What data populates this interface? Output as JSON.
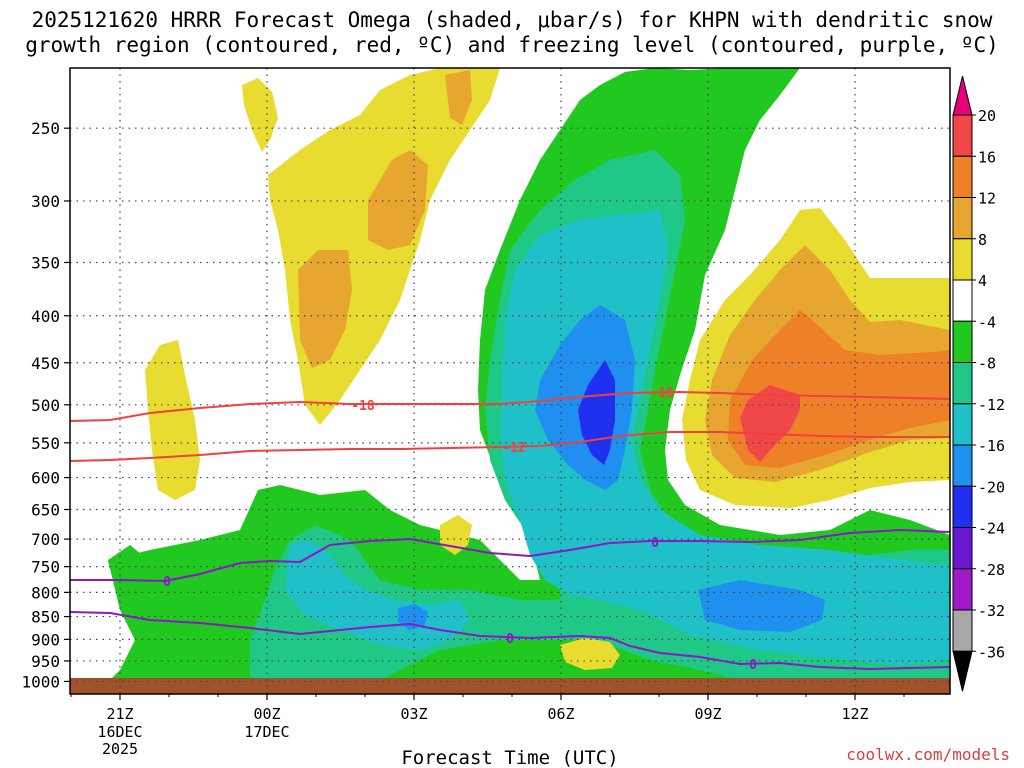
{
  "title": {
    "line1": "2025121620 HRRR Forecast Omega (shaded, μbar/s) for KHPN with dendritic snow",
    "line2": "growth region (contoured, red, ºC) and freezing level (contoured, purple, ºC)"
  },
  "xaxis_label": "Forecast Time (UTC)",
  "credit": "coolwx.com/models",
  "colors": {
    "dendritic": "#f04040",
    "freezing": "#8a18c8",
    "ground": "#a0522d",
    "grid": "#444444"
  },
  "chart_data": {
    "type": "heatmap",
    "xlabel": "Forecast Time (UTC)",
    "ylabel": "",
    "y_ticks": [
      "250",
      "300",
      "350",
      "400",
      "450",
      "500",
      "550",
      "600",
      "650",
      "700",
      "750",
      "800",
      "850",
      "900",
      "950",
      "1000"
    ],
    "x_ticks": [
      {
        "label": "21Z",
        "sub": [
          "16DEC",
          "2025"
        ],
        "hour": 1
      },
      {
        "label": "00Z",
        "sub": [
          "17DEC"
        ],
        "hour": 4
      },
      {
        "label": "03Z",
        "sub": [],
        "hour": 7
      },
      {
        "label": "06Z",
        "sub": [],
        "hour": 10
      },
      {
        "label": "09Z",
        "sub": [],
        "hour": 13
      },
      {
        "label": "12Z",
        "sub": [],
        "hour": 16
      }
    ],
    "colorbar": {
      "labels": [
        "20",
        "16",
        "12",
        "8",
        "4",
        "-4",
        "-8",
        "-12",
        "-16",
        "-20",
        "-24",
        "-28",
        "-32",
        "-36"
      ],
      "colors": [
        "#e8007a",
        "#f04848",
        "#ee8028",
        "#e6a630",
        "#e8dc30",
        "#ffffff",
        "#20c820",
        "#20c888",
        "#20c0c8",
        "#2090f0",
        "#2030f0",
        "#6a18d0",
        "#a018c8",
        "#a8a8a8",
        "#000000"
      ]
    },
    "contours": [
      {
        "name": "-18",
        "color": "#f04040",
        "label_positions_hour": [
          6.0,
          13.0
        ]
      },
      {
        "name": "-12",
        "color": "#f04040",
        "label_positions_hour": [
          9.0
        ]
      },
      {
        "name": "0",
        "color": "#8a18c8",
        "label_positions_hour": [
          2.0,
          12.0,
          9.0,
          13.5
        ]
      }
    ],
    "contour_labels": [
      "-18",
      "-18",
      "-12",
      "0",
      "0",
      "0",
      "0"
    ]
  }
}
